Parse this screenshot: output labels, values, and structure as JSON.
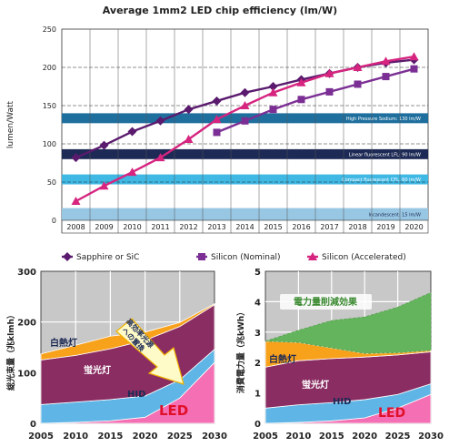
{
  "top_chart": {
    "title": "Average 1mm2 LED chip efficiency (lm/W)",
    "ylabel": "lumen/Watt",
    "type": "line",
    "ylim": [
      0,
      250
    ],
    "yticks": [
      0,
      50,
      100,
      150,
      200,
      250
    ],
    "categories": [
      "2008",
      "2009",
      "2010",
      "2011",
      "2012",
      "2013",
      "2014",
      "2015",
      "2016",
      "2017",
      "2018",
      "2019",
      "2020"
    ],
    "bands": [
      {
        "label": "High Pressure Sodium: 130 lm/W",
        "from": 127,
        "to": 140,
        "color": "#1f6f9e"
      },
      {
        "label": "Linear fluorescent LFL: 90 lm/W",
        "from": 80,
        "to": 93,
        "color": "#1d2a55"
      },
      {
        "label": "Compact fluorescent CFL: 60 lm/W",
        "from": 47,
        "to": 60,
        "color": "#3fb8e4"
      },
      {
        "label": "Incandescent: 15 lm/W",
        "from": 0,
        "to": 16,
        "color": "#98c7e3"
      }
    ],
    "series": [
      {
        "name": "Sapphire or SiC",
        "color": "#5a1a6e",
        "marker": "diamond",
        "values": [
          82,
          98,
          116,
          130,
          145,
          156,
          167,
          175,
          184,
          192,
          200,
          206,
          210
        ]
      },
      {
        "name": "Silicon (Nominal)",
        "color": "#7b2f94",
        "marker": "square",
        "values": [
          null,
          null,
          null,
          null,
          null,
          115,
          130,
          145,
          158,
          168,
          178,
          188,
          198
        ]
      },
      {
        "name": "Silicon (Accelerated)",
        "color": "#d6247f",
        "marker": "triangle",
        "values": [
          25,
          45,
          63,
          82,
          106,
          132,
          150,
          167,
          180,
          192,
          200,
          208,
          214
        ]
      }
    ]
  },
  "bottom_left": {
    "ylabel": "総光束量（兆klmh）",
    "type": "area",
    "x": [
      2005,
      2010,
      2015,
      2020,
      2025,
      2030
    ],
    "ylim": [
      0,
      300
    ],
    "yticks": [
      0,
      100,
      200,
      300
    ],
    "layers": [
      {
        "name": "LED",
        "color": "#f46fb3",
        "values": [
          0,
          2,
          5,
          12,
          50,
          120
        ]
      },
      {
        "name": "HID",
        "color": "#5fb6e6",
        "values": [
          37,
          40,
          42,
          42,
          36,
          26
        ]
      },
      {
        "name": "蛍光灯",
        "color": "#8a2d62",
        "values": [
          88,
          92,
          100,
          110,
          105,
          88
        ]
      },
      {
        "name": "白熱灯",
        "color": "#f8a11b",
        "values": [
          12,
          20,
          25,
          16,
          8,
          2
        ]
      }
    ],
    "arrow_label": "高効率光源への置換"
  },
  "bottom_right": {
    "ylabel": "消費電力量（兆kWh）",
    "type": "area",
    "x": [
      2005,
      2010,
      2015,
      2020,
      2025,
      2030
    ],
    "ylim": [
      0,
      5
    ],
    "yticks": [
      0,
      1,
      2,
      3,
      4,
      5
    ],
    "layers": [
      {
        "name": "LED",
        "color": "#f46fb3",
        "values": [
          0,
          0.03,
          0.08,
          0.18,
          0.5,
          0.95
        ]
      },
      {
        "name": "HID",
        "color": "#5fb6e6",
        "values": [
          0.5,
          0.58,
          0.6,
          0.6,
          0.45,
          0.35
        ]
      },
      {
        "name": "蛍光灯",
        "color": "#8a2d62",
        "values": [
          1.35,
          1.45,
          1.45,
          1.4,
          1.3,
          1.05
        ]
      },
      {
        "name": "白熱灯",
        "color": "#f8a11b",
        "values": [
          0.85,
          0.6,
          0.35,
          0.12,
          0.07,
          0.05
        ]
      },
      {
        "name": "電力量削減効果",
        "color": "#63b45c",
        "values": [
          0,
          0.4,
          0.9,
          1.2,
          1.5,
          1.9
        ]
      }
    ]
  }
}
